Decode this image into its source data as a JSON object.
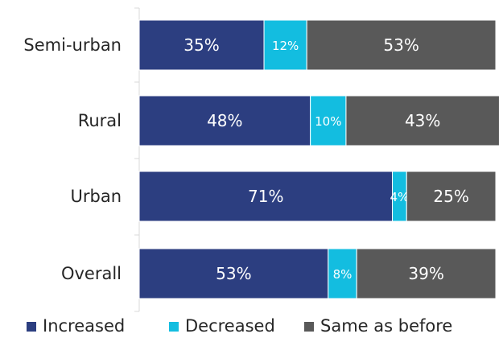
{
  "chart_data": {
    "type": "bar",
    "orientation": "horizontal",
    "stacked": true,
    "categories": [
      "Semi-urban",
      "Rural",
      "Urban",
      "Overall"
    ],
    "series": [
      {
        "name": "Increased",
        "color": "#2c3e80",
        "values": [
          35,
          48,
          71,
          53
        ],
        "labels": [
          "35%",
          "48%",
          "71%",
          "53%"
        ]
      },
      {
        "name": "Decreased",
        "color": "#13bde0",
        "values": [
          12,
          10,
          4,
          8
        ],
        "labels": [
          "12%",
          "10%",
          "4%",
          "8%"
        ]
      },
      {
        "name": "Same as before",
        "color": "#595959",
        "values": [
          53,
          43,
          25,
          39
        ],
        "labels": [
          "53%",
          "43%",
          "25%",
          "39%"
        ]
      }
    ],
    "xlim": [
      0,
      100
    ],
    "grid": false,
    "legend_position": "bottom"
  }
}
